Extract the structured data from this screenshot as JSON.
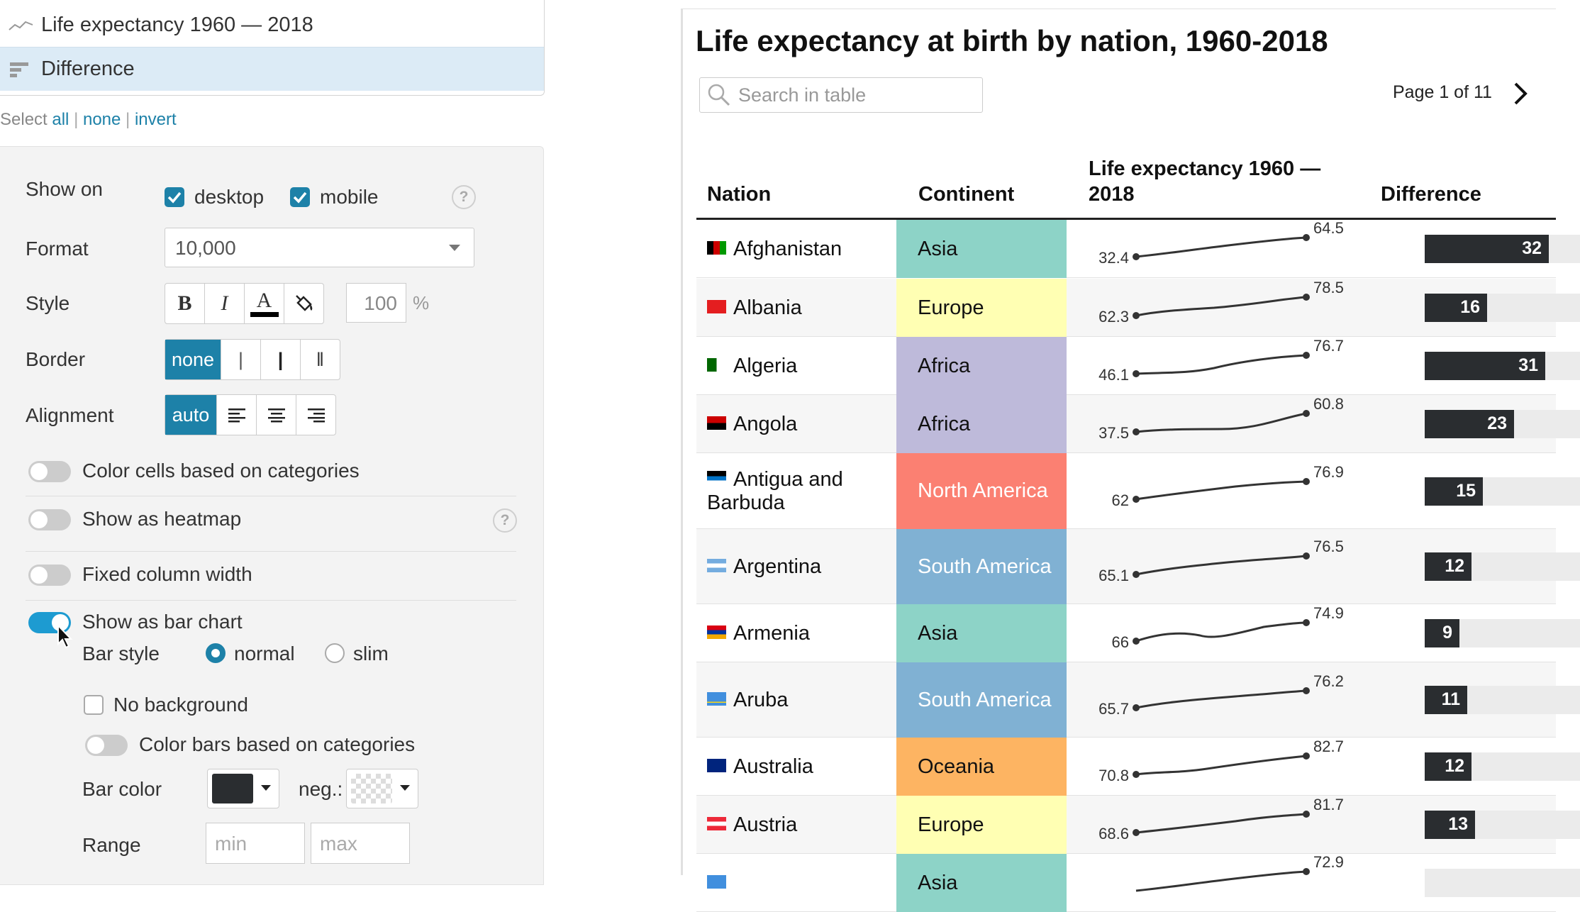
{
  "columns_list": {
    "items": [
      {
        "label": "Life expectancy 1960 — 2018",
        "icon": "sparkline-icon"
      },
      {
        "label": "Difference",
        "icon": "bar-chart-icon",
        "selected": true
      }
    ]
  },
  "select_links": {
    "prefix": "Select",
    "all": "all",
    "none": "none",
    "invert": "invert"
  },
  "settings": {
    "show_on": {
      "label": "Show on",
      "desktop": "desktop",
      "mobile": "mobile",
      "help": "?"
    },
    "format": {
      "label": "Format",
      "value": "10,000"
    },
    "style": {
      "label": "Style",
      "bold": "B",
      "italic": "I",
      "text_color": "A",
      "percent_value": "100",
      "percent_sign": "%"
    },
    "border": {
      "label": "Border",
      "options": [
        "none",
        "|",
        "|",
        "‖"
      ]
    },
    "alignment": {
      "label": "Alignment",
      "auto": "auto"
    },
    "color_cells": "Color cells based on categories",
    "heatmap": {
      "label": "Show as heatmap",
      "help": "?"
    },
    "fixed_width": "Fixed column width",
    "bar_chart": "Show as bar chart",
    "bar_style": {
      "label": "Bar style",
      "normal": "normal",
      "slim": "slim"
    },
    "no_background": "No background",
    "color_bars": "Color bars based on categories",
    "bar_color": {
      "label": "Bar color",
      "color": "#2a2d30",
      "neg": "neg.:"
    },
    "range": {
      "label": "Range",
      "min_placeholder": "min",
      "max_placeholder": "max"
    }
  },
  "table": {
    "title": "Life expectancy at birth by nation, 1960-2018",
    "search_placeholder": "Search in table",
    "page_info": "Page 1 of 11",
    "headers": {
      "nation": "Nation",
      "continent": "Continent",
      "life": "Life expectancy 1960 — 2018",
      "difference": "Difference"
    },
    "continent_colors": {
      "Asia": "#8dd3c7",
      "Europe": "#ffffb3",
      "Africa": "#bebada",
      "North America": "#fb8072",
      "South America": "#80b1d3",
      "Oceania": "#fdb462"
    },
    "rows": [
      {
        "nation": "Afghanistan",
        "continent": "Asia",
        "start": "32.4",
        "end": "64.5",
        "diff": "32",
        "diff_value": 32
      },
      {
        "nation": "Albania",
        "continent": "Europe",
        "start": "62.3",
        "end": "78.5",
        "diff": "16",
        "diff_value": 16
      },
      {
        "nation": "Algeria",
        "continent": "Africa",
        "start": "46.1",
        "end": "76.7",
        "diff": "31",
        "diff_value": 31
      },
      {
        "nation": "Angola",
        "continent": "Africa",
        "start": "37.5",
        "end": "60.8",
        "diff": "23",
        "diff_value": 23
      },
      {
        "nation": "Antigua and Barbuda",
        "continent": "North America",
        "start": "62",
        "end": "76.9",
        "diff": "15",
        "diff_value": 15
      },
      {
        "nation": "Argentina",
        "continent": "South America",
        "start": "65.1",
        "end": "76.5",
        "diff": "12",
        "diff_value": 12
      },
      {
        "nation": "Armenia",
        "continent": "Asia",
        "start": "66",
        "end": "74.9",
        "diff": "9",
        "diff_value": 9
      },
      {
        "nation": "Aruba",
        "continent": "South America",
        "start": "65.7",
        "end": "76.2",
        "diff": "11",
        "diff_value": 11
      },
      {
        "nation": "Australia",
        "continent": "Oceania",
        "start": "70.8",
        "end": "82.7",
        "diff": "12",
        "diff_value": 12
      },
      {
        "nation": "Austria",
        "continent": "Europe",
        "start": "68.6",
        "end": "81.7",
        "diff": "13",
        "diff_value": 13
      },
      {
        "nation": "",
        "continent": "Asia",
        "start": "",
        "end": "72.9",
        "diff": "",
        "diff_value": 0
      }
    ],
    "diff_max": 40
  }
}
